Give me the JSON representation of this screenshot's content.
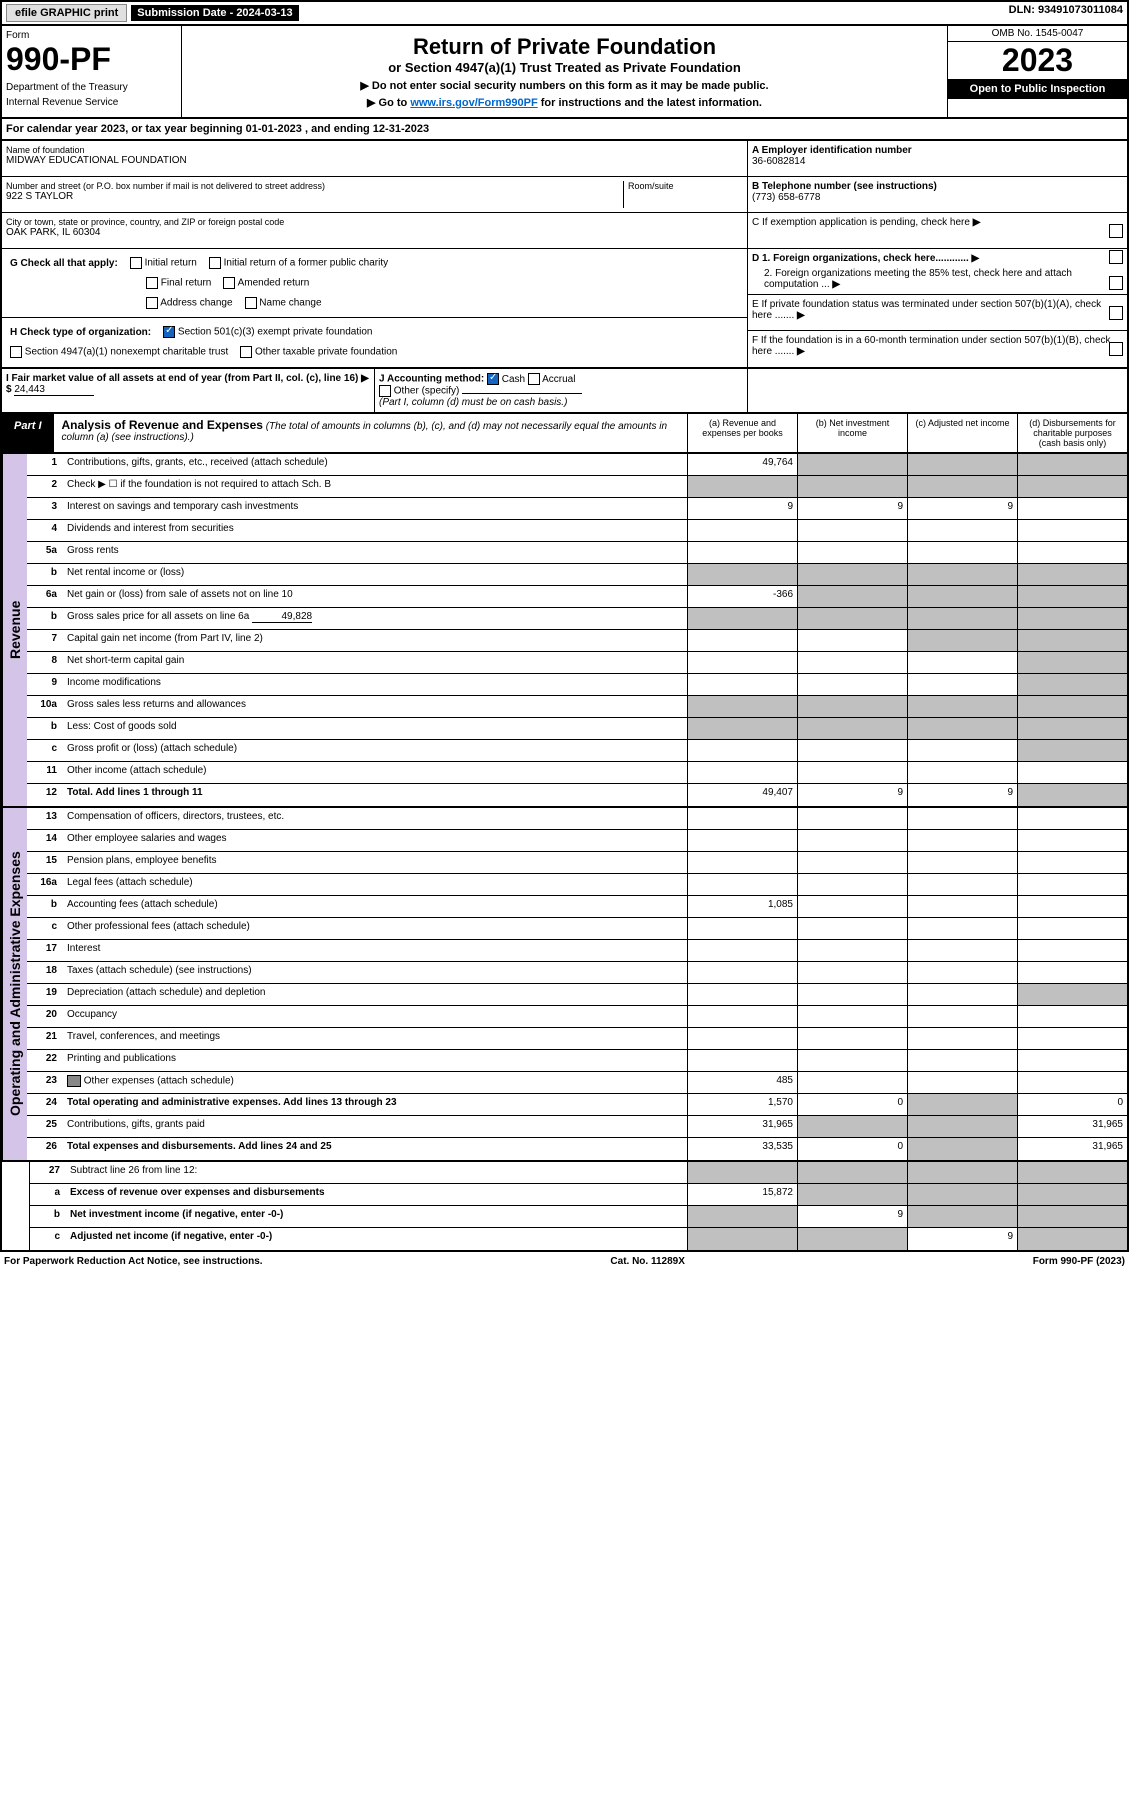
{
  "top": {
    "efile": "efile GRAPHIC print",
    "subdate_label": "Submission Date - 2024-03-13",
    "dln": "DLN: 93491073011084"
  },
  "header": {
    "form_label": "Form",
    "form_number": "990-PF",
    "dept": "Department of the Treasury",
    "irs": "Internal Revenue Service",
    "title": "Return of Private Foundation",
    "subtitle": "or Section 4947(a)(1) Trust Treated as Private Foundation",
    "instr1": "▶ Do not enter social security numbers on this form as it may be made public.",
    "instr2_pre": "▶ Go to ",
    "instr2_link": "www.irs.gov/Form990PF",
    "instr2_post": " for instructions and the latest information.",
    "omb": "OMB No. 1545-0047",
    "year": "2023",
    "open": "Open to Public Inspection"
  },
  "calyear": "For calendar year 2023, or tax year beginning 01-01-2023                  , and ending 12-31-2023",
  "info": {
    "name_label": "Name of foundation",
    "name": "MIDWAY EDUCATIONAL FOUNDATION",
    "addr_label": "Number and street (or P.O. box number if mail is not delivered to street address)",
    "room_label": "Room/suite",
    "addr": "922 S TAYLOR",
    "city_label": "City or town, state or province, country, and ZIP or foreign postal code",
    "city": "OAK PARK, IL  60304",
    "a_label": "A Employer identification number",
    "ein": "36-6082814",
    "b_label": "B Telephone number (see instructions)",
    "phone": "(773) 658-6778",
    "c_label": "C If exemption application is pending, check here",
    "d1_label": "D 1. Foreign organizations, check here............",
    "d2_label": "2. Foreign organizations meeting the 85% test, check here and attach computation ...",
    "e_label": "E If private foundation status was terminated under section 507(b)(1)(A), check here .......",
    "f_label": "F If the foundation is in a 60-month termination under section 507(b)(1)(B), check here ......."
  },
  "g": {
    "label": "G Check all that apply:",
    "initial": "Initial return",
    "initial_former": "Initial return of a former public charity",
    "final": "Final return",
    "amended": "Amended return",
    "addr_change": "Address change",
    "name_change": "Name change"
  },
  "h": {
    "label": "H Check type of organization:",
    "s501": "Section 501(c)(3) exempt private foundation",
    "s4947": "Section 4947(a)(1) nonexempt charitable trust",
    "other_tax": "Other taxable private foundation"
  },
  "i": {
    "label": "I Fair market value of all assets at end of year (from Part II, col. (c), line 16)",
    "value": "24,443"
  },
  "j": {
    "label": "J Accounting method:",
    "cash": "Cash",
    "accrual": "Accrual",
    "other": "Other (specify)",
    "note": "(Part I, column (d) must be on cash basis.)"
  },
  "part1": {
    "badge": "Part I",
    "title": "Analysis of Revenue and Expenses",
    "title_note": "(The total of amounts in columns (b), (c), and (d) may not necessarily equal the amounts in column (a) (see instructions).)",
    "col_a": "(a) Revenue and expenses per books",
    "col_b": "(b) Net investment income",
    "col_c": "(c) Adjusted net income",
    "col_d": "(d) Disbursements for charitable purposes (cash basis only)"
  },
  "side_rev": "Revenue",
  "side_exp": "Operating and Administrative Expenses",
  "rows": {
    "r1": {
      "n": "1",
      "l": "Contributions, gifts, grants, etc., received (attach schedule)",
      "a": "49,764"
    },
    "r2": {
      "n": "2",
      "l": "Check ▶ ☐ if the foundation is not required to attach Sch. B"
    },
    "r3": {
      "n": "3",
      "l": "Interest on savings and temporary cash investments",
      "a": "9",
      "b": "9",
      "c": "9"
    },
    "r4": {
      "n": "4",
      "l": "Dividends and interest from securities"
    },
    "r5a": {
      "n": "5a",
      "l": "Gross rents"
    },
    "r5b": {
      "n": "b",
      "l": "Net rental income or (loss)"
    },
    "r6a": {
      "n": "6a",
      "l": "Net gain or (loss) from sale of assets not on line 10",
      "a": "-366"
    },
    "r6b": {
      "n": "b",
      "l": "Gross sales price for all assets on line 6a",
      "inline": "49,828"
    },
    "r7": {
      "n": "7",
      "l": "Capital gain net income (from Part IV, line 2)"
    },
    "r8": {
      "n": "8",
      "l": "Net short-term capital gain"
    },
    "r9": {
      "n": "9",
      "l": "Income modifications"
    },
    "r10a": {
      "n": "10a",
      "l": "Gross sales less returns and allowances"
    },
    "r10b": {
      "n": "b",
      "l": "Less: Cost of goods sold"
    },
    "r10c": {
      "n": "c",
      "l": "Gross profit or (loss) (attach schedule)"
    },
    "r11": {
      "n": "11",
      "l": "Other income (attach schedule)"
    },
    "r12": {
      "n": "12",
      "l": "Total. Add lines 1 through 11",
      "a": "49,407",
      "b": "9",
      "c": "9",
      "bold": true
    },
    "r13": {
      "n": "13",
      "l": "Compensation of officers, directors, trustees, etc."
    },
    "r14": {
      "n": "14",
      "l": "Other employee salaries and wages"
    },
    "r15": {
      "n": "15",
      "l": "Pension plans, employee benefits"
    },
    "r16a": {
      "n": "16a",
      "l": "Legal fees (attach schedule)"
    },
    "r16b": {
      "n": "b",
      "l": "Accounting fees (attach schedule)",
      "a": "1,085"
    },
    "r16c": {
      "n": "c",
      "l": "Other professional fees (attach schedule)"
    },
    "r17": {
      "n": "17",
      "l": "Interest"
    },
    "r18": {
      "n": "18",
      "l": "Taxes (attach schedule) (see instructions)"
    },
    "r19": {
      "n": "19",
      "l": "Depreciation (attach schedule) and depletion"
    },
    "r20": {
      "n": "20",
      "l": "Occupancy"
    },
    "r21": {
      "n": "21",
      "l": "Travel, conferences, and meetings"
    },
    "r22": {
      "n": "22",
      "l": "Printing and publications"
    },
    "r23": {
      "n": "23",
      "l": "Other expenses (attach schedule)",
      "a": "485",
      "icon": true
    },
    "r24": {
      "n": "24",
      "l": "Total operating and administrative expenses. Add lines 13 through 23",
      "a": "1,570",
      "b": "0",
      "d": "0",
      "bold": true
    },
    "r25": {
      "n": "25",
      "l": "Contributions, gifts, grants paid",
      "a": "31,965",
      "d": "31,965"
    },
    "r26": {
      "n": "26",
      "l": "Total expenses and disbursements. Add lines 24 and 25",
      "a": "33,535",
      "b": "0",
      "d": "31,965",
      "bold": true
    },
    "r27": {
      "n": "27",
      "l": "Subtract line 26 from line 12:"
    },
    "r27a": {
      "n": "a",
      "l": "Excess of revenue over expenses and disbursements",
      "a": "15,872",
      "bold": true
    },
    "r27b": {
      "n": "b",
      "l": "Net investment income (if negative, enter -0-)",
      "b": "9",
      "bold": true
    },
    "r27c": {
      "n": "c",
      "l": "Adjusted net income (if negative, enter -0-)",
      "c": "9",
      "bold": true
    }
  },
  "footer": {
    "left": "For Paperwork Reduction Act Notice, see instructions.",
    "mid": "Cat. No. 11289X",
    "right": "Form 990-PF (2023)"
  },
  "colors": {
    "side_bg": "#d4c5e8",
    "gray_cell": "#c0c0c0",
    "link": "#0066cc",
    "check": "#1565c0"
  }
}
